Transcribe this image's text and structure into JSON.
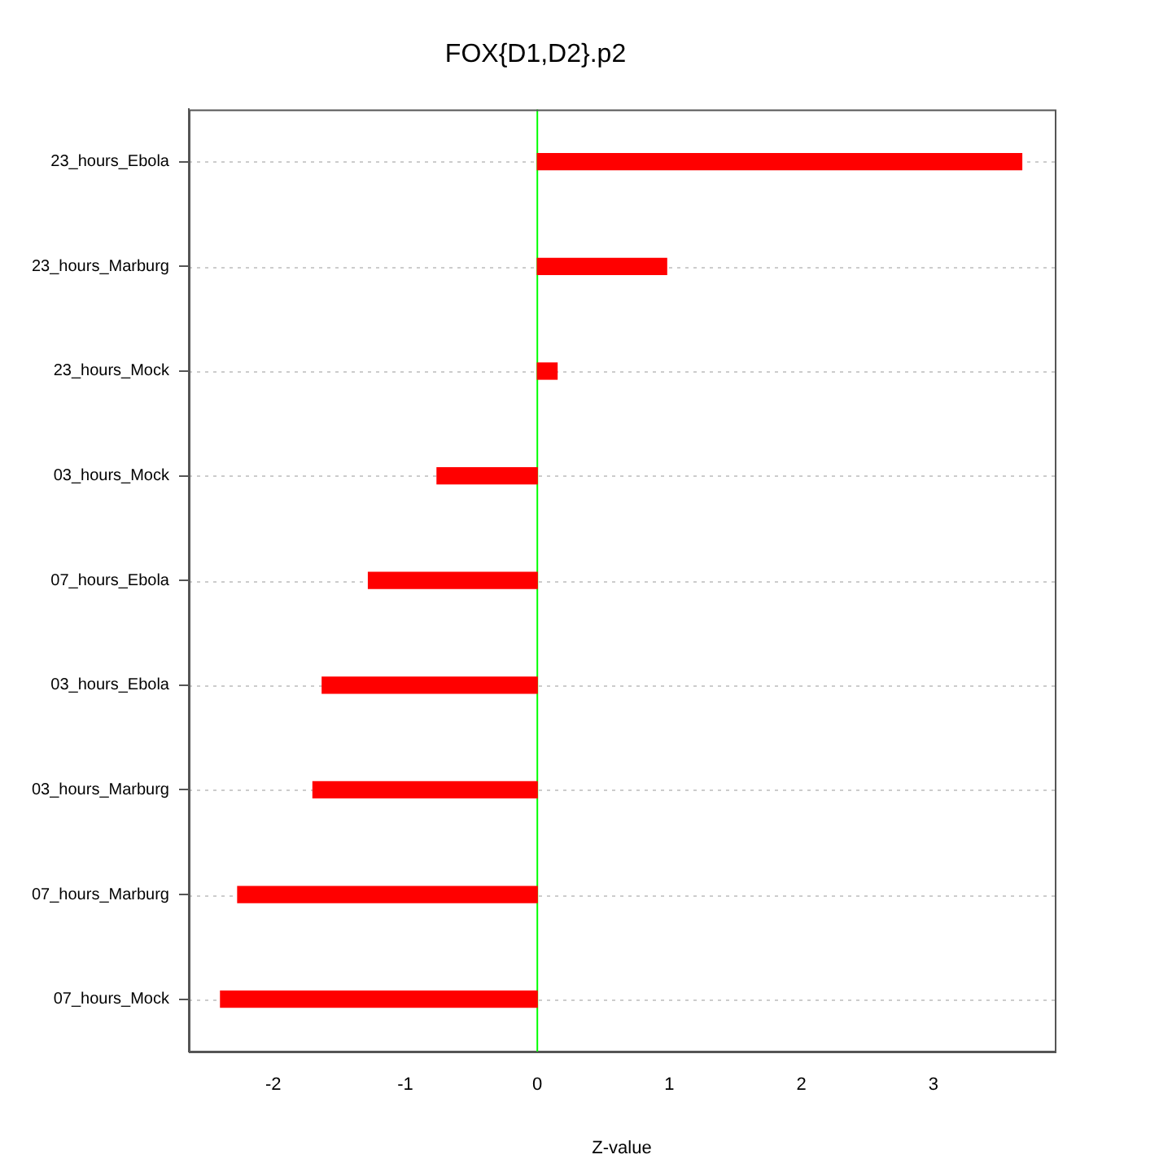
{
  "chart_data": {
    "type": "bar",
    "orientation": "horizontal",
    "title": "FOX{D1,D2}.p2",
    "xlabel": "Z-value",
    "categories": [
      "23_hours_Ebola",
      "23_hours_Marburg",
      "23_hours_Mock",
      "03_hours_Mock",
      "07_hours_Ebola",
      "03_hours_Ebola",
      "03_hours_Marburg",
      "07_hours_Marburg",
      "07_hours_Mock"
    ],
    "values": [
      3.67,
      0.98,
      0.15,
      -0.76,
      -1.28,
      -1.63,
      -1.7,
      -2.27,
      -2.4
    ],
    "color": "#ff0000",
    "xlim": [
      -2.64,
      3.92
    ],
    "xticks": [
      -2,
      -1,
      0,
      1,
      2,
      3
    ],
    "grid": "y",
    "ref_lines": [
      {
        "axis": "x",
        "value": 0,
        "color": "#00ff00"
      }
    ]
  }
}
